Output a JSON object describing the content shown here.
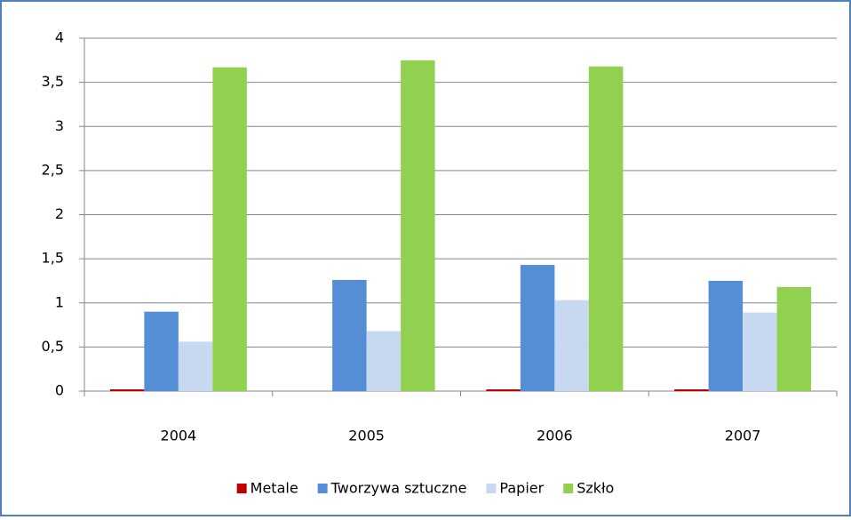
{
  "chart_data": {
    "type": "bar",
    "categories": [
      "2004",
      "2005",
      "2006",
      "2007"
    ],
    "series": [
      {
        "name": "Metale",
        "color": "#c00000",
        "values": [
          0.02,
          0,
          0.02,
          0.02
        ]
      },
      {
        "name": "Tworzywa sztuczne",
        "color": "#558ed5",
        "values": [
          0.9,
          1.26,
          1.43,
          1.25
        ]
      },
      {
        "name": "Papier",
        "color": "#c6d9f1",
        "values": [
          0.56,
          0.68,
          1.03,
          0.89
        ]
      },
      {
        "name": "Szkło",
        "color": "#92d050",
        "values": [
          3.67,
          3.75,
          3.68,
          1.18
        ]
      }
    ],
    "ylim": [
      0,
      4
    ],
    "yticks": [
      0,
      {
        "value": 0.5,
        "label": "0,5"
      },
      1,
      {
        "value": 1.5,
        "label": "1,5"
      },
      2,
      {
        "value": 2.5,
        "label": "2,5"
      },
      3,
      {
        "value": 3.5,
        "label": "3,5"
      },
      4
    ],
    "grid": true,
    "legend": "bottom"
  }
}
